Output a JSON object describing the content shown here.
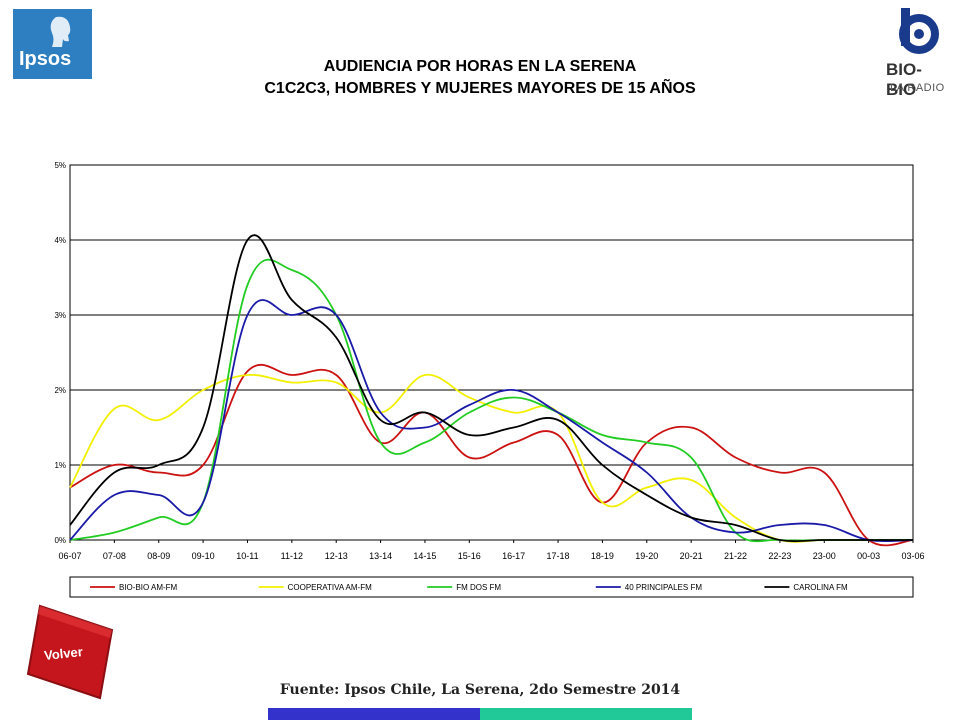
{
  "logos": {
    "left": "Ipsos",
    "right_name": "BIO-BIO",
    "right_sub": "LA RADIO"
  },
  "title_line1": "AUDIENCIA POR HORAS EN LA SERENA",
  "title_line2": "C1C2C3, HOMBRES Y MUJERES MAYORES DE 15 AÑOS",
  "volver_label": "Volver",
  "footer": "Fuente: Ipsos Chile, La Serena, 2do Semestre 2014",
  "chart_data": {
    "type": "line",
    "title": "",
    "xlabel": "",
    "ylabel": "",
    "ylim": [
      0,
      5
    ],
    "yticks": [
      "0%",
      "1%",
      "2%",
      "3%",
      "4%",
      "5%"
    ],
    "grid": true,
    "legend": "bottom",
    "categories": [
      "06-07",
      "07-08",
      "08-09",
      "09-10",
      "10-11",
      "11-12",
      "12-13",
      "13-14",
      "14-15",
      "15-16",
      "16-17",
      "17-18",
      "18-19",
      "19-20",
      "20-21",
      "21-22",
      "22-23",
      "23-00",
      "00-03",
      "03-06"
    ],
    "series": [
      {
        "name": "BIO-BIO AM-FM",
        "color": "#cc1111",
        "values": [
          0.7,
          1.0,
          0.9,
          1.0,
          2.25,
          2.2,
          2.2,
          1.3,
          1.7,
          1.1,
          1.3,
          1.4,
          0.5,
          1.3,
          1.5,
          1.1,
          0.9,
          0.9,
          0.0,
          0.0
        ]
      },
      {
        "name": "COOPERATIVA AM-FM",
        "color": "#f2f000",
        "values": [
          0.7,
          1.75,
          1.6,
          2.0,
          2.2,
          2.1,
          2.1,
          1.7,
          2.2,
          1.9,
          1.7,
          1.7,
          0.5,
          0.7,
          0.8,
          0.3,
          0.0,
          0.0,
          0.0,
          0.0
        ]
      },
      {
        "name": "FM DOS FM",
        "color": "#22cc22",
        "values": [
          0.0,
          0.1,
          0.3,
          0.5,
          3.4,
          3.6,
          3.0,
          1.3,
          1.3,
          1.7,
          1.9,
          1.7,
          1.4,
          1.3,
          1.1,
          0.1,
          0.0,
          0.0,
          0.0,
          0.0
        ]
      },
      {
        "name": "40 PRINCIPALES FM",
        "color": "#1a1aa8",
        "values": [
          0.0,
          0.6,
          0.6,
          0.5,
          3.0,
          3.0,
          3.0,
          1.7,
          1.5,
          1.8,
          2.0,
          1.7,
          1.3,
          0.9,
          0.3,
          0.1,
          0.2,
          0.2,
          0.0,
          0.0
        ]
      },
      {
        "name": "CAROLINA FM",
        "color": "#000000",
        "values": [
          0.2,
          0.9,
          1.0,
          1.5,
          4.0,
          3.2,
          2.7,
          1.6,
          1.7,
          1.4,
          1.5,
          1.6,
          1.0,
          0.6,
          0.3,
          0.2,
          0.0,
          0.0,
          0.0,
          0.0
        ]
      }
    ]
  }
}
